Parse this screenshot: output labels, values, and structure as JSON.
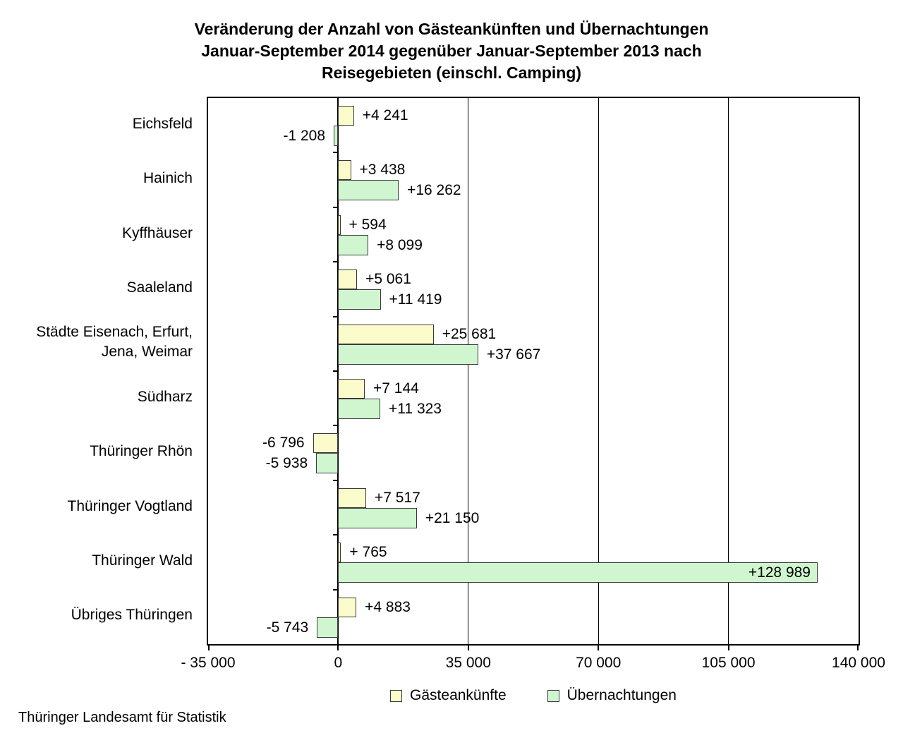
{
  "header": {
    "title": "Veränderung der Anzahl von Gästeankünften und Übernachtungen\nJanuar-September 2014 gegenüber Januar-September 2013 nach\nReisegebieten (einschl. Camping)"
  },
  "footer": {
    "source": "Thüringer Landesamt für Statistik"
  },
  "colors": {
    "background": "#ffffff",
    "axis_line": "#000000",
    "bar_border": "#3b3b3b",
    "arrivals_fill": "#FBFBCC",
    "overnights_fill": "#CFF6CF"
  },
  "chart_data": {
    "type": "bar",
    "orientation": "horizontal",
    "title": "Veränderung der Anzahl von Gästeankünften und Übernachtungen Januar-September 2014 gegenüber Januar-September 2013 nach Reisegebieten (einschl. Camping)",
    "categories": [
      "Eichsfeld",
      "Hainich",
      "Kyffhäuser",
      "Saaleland",
      "Städte Eisenach, Erfurt,\nJena, Weimar",
      "Südharz",
      "Thüringer Rhön",
      "Thüringer Vogtland",
      "Thüringer Wald",
      "Übriges Thüringen"
    ],
    "series": [
      {
        "name": "Gästeankünfte",
        "color": "#FBFBCC",
        "values": [
          4241,
          3438,
          594,
          5061,
          25681,
          7144,
          -6796,
          7517,
          765,
          4883
        ],
        "labels": [
          "+4 241",
          "+3 438",
          "+ 594",
          "+5 061",
          "+25 681",
          "+7 144",
          "-6 796",
          "+7 517",
          "+ 765",
          "+4 883"
        ]
      },
      {
        "name": "Übernachtungen",
        "color": "#CFF6CF",
        "values": [
          -1208,
          16262,
          8099,
          11419,
          37667,
          11323,
          -5938,
          21150,
          128989,
          -5743
        ],
        "labels": [
          "-1 208",
          "+16 262",
          "+8 099",
          "+11 419",
          "+37 667",
          "+11 323",
          "-5 938",
          "+21 150",
          "+128 989",
          "-5 743"
        ]
      }
    ],
    "xlim": [
      -35000,
      140000
    ],
    "x_ticks": {
      "values": [
        -35000,
        0,
        35000,
        70000,
        105000,
        140000
      ],
      "labels": [
        "- 35 000",
        "0",
        "35 000",
        "70 000",
        "105 000",
        "140 000"
      ]
    },
    "grid": "vertical gridlines every 35 000, solid axis at 0",
    "legend_position": "bottom-center"
  }
}
